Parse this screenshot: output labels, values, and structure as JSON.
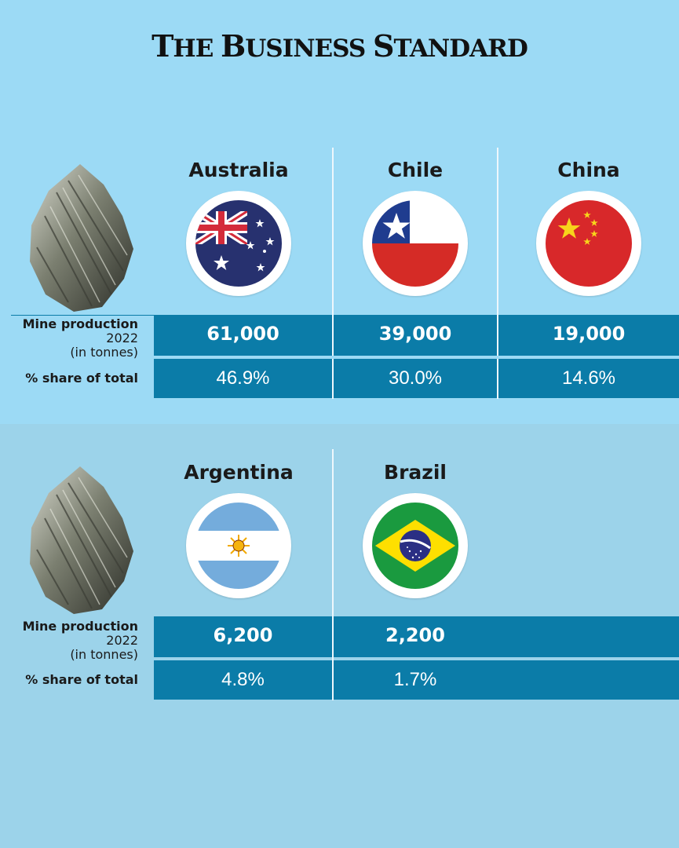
{
  "brand": {
    "name_parts": [
      "T",
      "HE ",
      "B",
      "USINESS ",
      "S",
      "TANDARD"
    ]
  },
  "row_labels": {
    "production_main": "Mine production",
    "production_year": "2022",
    "production_unit": "(in tonnes)",
    "share": "% share of total"
  },
  "colors": {
    "top_background": "#9cdaf5",
    "bottom_background": "#9cd3ea",
    "bar": "#0b7ca8",
    "divider": "#eef7fc"
  },
  "chart_data": {
    "type": "table",
    "columns": [
      "Mine production 2022 (in tonnes)",
      "% share of total"
    ],
    "rows": [
      {
        "country": "Australia",
        "production": "61,000",
        "share": "46.9%",
        "flag_icon": "australia-flag-icon"
      },
      {
        "country": "Chile",
        "production": "39,000",
        "share": "30.0%",
        "flag_icon": "chile-flag-icon"
      },
      {
        "country": "China",
        "production": "19,000",
        "share": "14.6%",
        "flag_icon": "china-flag-icon"
      },
      {
        "country": "Argentina",
        "production": "6,200",
        "share": "4.8%",
        "flag_icon": "argentina-flag-icon"
      },
      {
        "country": "Brazil",
        "production": "2,200",
        "share": "1.7%",
        "flag_icon": "brazil-flag-icon"
      }
    ]
  }
}
